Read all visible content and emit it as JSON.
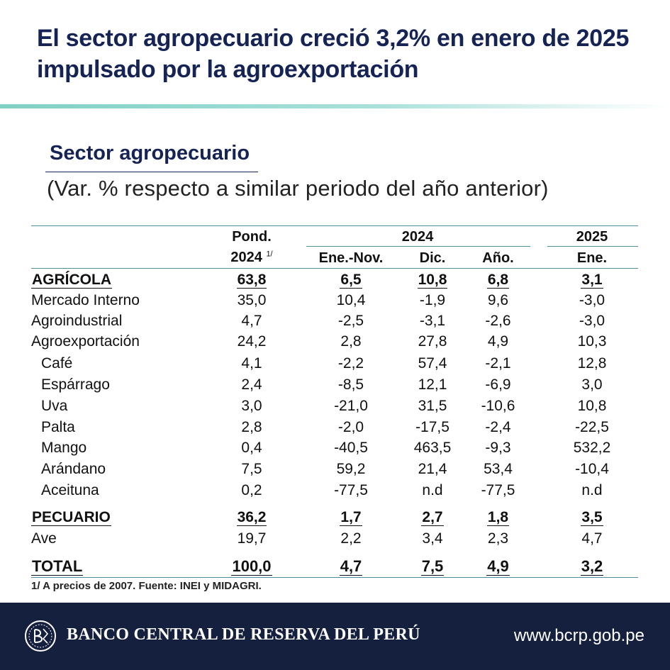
{
  "headline": "El sector agropecuario creció 3,2% en enero de 2025 impulsado por la agroexportación",
  "section_title": "Sector agropecuario",
  "subtitle": "(Var. % respecto a similar periodo del año anterior)",
  "header": {
    "pond": "Pond.",
    "pond_year": "2024",
    "pond_note": "1/",
    "year_2024": "2024",
    "year_2025": "2025",
    "col_ene_nov": "Ene.-Nov.",
    "col_dic": "Dic.",
    "col_ano": "Año.",
    "col_ene": "Ene."
  },
  "rows": [
    {
      "label": "AGRÍCOLA",
      "pond": "63,8",
      "ene_nov": "6,5",
      "dic": "10,8",
      "ano": "6,8",
      "ene": "3,1"
    },
    {
      "label": "Mercado Interno",
      "pond": "35,0",
      "ene_nov": "10,4",
      "dic": "-1,9",
      "ano": "9,6",
      "ene": "-3,0"
    },
    {
      "label": "Agroindustrial",
      "pond": "4,7",
      "ene_nov": "-2,5",
      "dic": "-3,1",
      "ano": "-2,6",
      "ene": "-3,0"
    },
    {
      "label": "Agroexportación",
      "pond": "24,2",
      "ene_nov": "2,8",
      "dic": "27,8",
      "ano": "4,9",
      "ene": "10,3"
    },
    {
      "label": "Café",
      "pond": "4,1",
      "ene_nov": "-2,2",
      "dic": "57,4",
      "ano": "-2,1",
      "ene": "12,8"
    },
    {
      "label": "Espárrago",
      "pond": "2,4",
      "ene_nov": "-8,5",
      "dic": "12,1",
      "ano": "-6,9",
      "ene": "3,0"
    },
    {
      "label": "Uva",
      "pond": "3,0",
      "ene_nov": "-21,0",
      "dic": "31,5",
      "ano": "-10,6",
      "ene": "10,8"
    },
    {
      "label": "Palta",
      "pond": "2,8",
      "ene_nov": "-2,0",
      "dic": "-17,5",
      "ano": "-2,4",
      "ene": "-22,5"
    },
    {
      "label": "Mango",
      "pond": "0,4",
      "ene_nov": "-40,5",
      "dic": "463,5",
      "ano": "-9,3",
      "ene": "532,2"
    },
    {
      "label": "Arándano",
      "pond": "7,5",
      "ene_nov": "59,2",
      "dic": "21,4",
      "ano": "53,4",
      "ene": "-10,4"
    },
    {
      "label": "Aceituna",
      "pond": "0,2",
      "ene_nov": "-77,5",
      "dic": "n.d",
      "ano": "-77,5",
      "ene": "n.d"
    },
    {
      "label": "PECUARIO",
      "pond": "36,2",
      "ene_nov": "1,7",
      "dic": "2,7",
      "ano": "1,8",
      "ene": "3,5"
    },
    {
      "label": "Ave",
      "pond": "19,7",
      "ene_nov": "2,2",
      "dic": "3,4",
      "ano": "2,3",
      "ene": "4,7"
    },
    {
      "label": "TOTAL",
      "pond": "100,0",
      "ene_nov": "4,7",
      "dic": "7,5",
      "ano": "4,9",
      "ene": "3,2"
    }
  ],
  "footnote": "1/ A precios de 2007. Fuente: INEI y MIDAGRI.",
  "footer": {
    "bank_name": "BANCO CENTRAL DE RESERVA DEL PERÚ",
    "website": "www.bcrp.gob.pe",
    "logo_icon": "bcrp-seal-icon"
  },
  "colors": {
    "navy": "#152454",
    "teal_accent": "#7fd0c6",
    "table_lines": "#4d8f9b",
    "footer_bg": "#15203f"
  }
}
